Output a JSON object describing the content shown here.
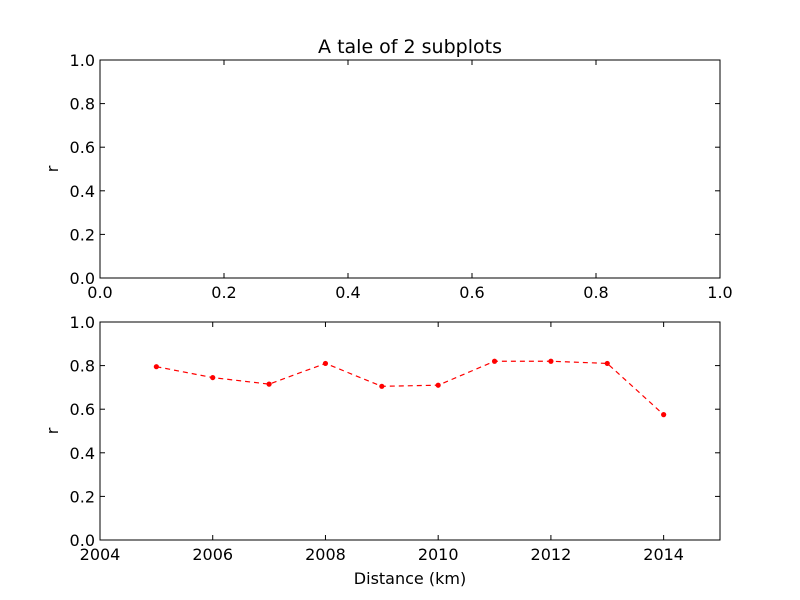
{
  "chart_data": [
    {
      "type": "line",
      "title": "A tale of 2 subplots",
      "xlabel": "",
      "ylabel": "r",
      "xlim": [
        0.0,
        1.0
      ],
      "ylim": [
        0.0,
        1.0
      ],
      "xticks": [
        "0.0",
        "0.2",
        "0.4",
        "0.6",
        "0.8",
        "1.0"
      ],
      "yticks": [
        "0.0",
        "0.2",
        "0.4",
        "0.6",
        "0.8",
        "1.0"
      ],
      "grid": false,
      "series": []
    },
    {
      "type": "line",
      "title": "",
      "xlabel": "Distance (km)",
      "ylabel": "r",
      "xlim": [
        2004,
        2015
      ],
      "ylim": [
        0.0,
        1.0
      ],
      "xticks": [
        "2004",
        "2006",
        "2008",
        "2010",
        "2012",
        "2014"
      ],
      "yticks": [
        "0.0",
        "0.2",
        "0.4",
        "0.6",
        "0.8",
        "1.0"
      ],
      "grid": false,
      "series": [
        {
          "color": "#ff0000",
          "linestyle": "dashed",
          "marker": "dot",
          "x": [
            2005,
            2006,
            2007,
            2008,
            2009,
            2010,
            2011,
            2012,
            2013,
            2014
          ],
          "y": [
            0.795,
            0.745,
            0.715,
            0.81,
            0.705,
            0.71,
            0.82,
            0.82,
            0.81,
            0.575
          ]
        }
      ]
    }
  ]
}
